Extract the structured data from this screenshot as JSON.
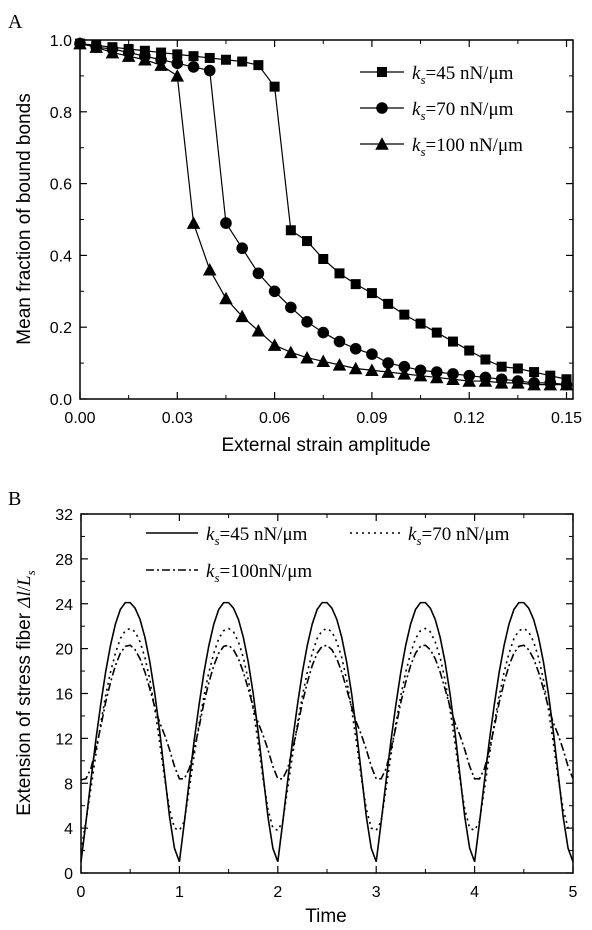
{
  "chart_data": [
    {
      "panel_label": "A",
      "type": "scatter",
      "xlabel": "External strain amplitude",
      "ylabel": "Mean fraction of bound bonds",
      "xlim": [
        0.0,
        0.152
      ],
      "ylim": [
        0.0,
        1.0
      ],
      "xticks": [
        0.0,
        0.03,
        0.06,
        0.09,
        0.12,
        0.15
      ],
      "xtick_labels": [
        "0.00",
        "0.03",
        "0.06",
        "0.09",
        "0.12",
        "0.15"
      ],
      "yticks": [
        0.0,
        0.2,
        0.4,
        0.6,
        0.8,
        1.0
      ],
      "ytick_labels": [
        "0.0",
        "0.2",
        "0.4",
        "0.6",
        "0.8",
        "1.0"
      ],
      "legend_position": "top-right",
      "series": [
        {
          "name_prefix": "k",
          "name_sub": "s",
          "name_rest": "=45 nN/μm",
          "marker": "square",
          "x": [
            0.0,
            0.005,
            0.01,
            0.015,
            0.02,
            0.025,
            0.03,
            0.035,
            0.04,
            0.045,
            0.05,
            0.055,
            0.06,
            0.065,
            0.07,
            0.075,
            0.08,
            0.085,
            0.09,
            0.095,
            0.1,
            0.105,
            0.11,
            0.115,
            0.12,
            0.125,
            0.13,
            0.135,
            0.14,
            0.145,
            0.15
          ],
          "y": [
            0.99,
            0.985,
            0.98,
            0.975,
            0.97,
            0.965,
            0.96,
            0.955,
            0.95,
            0.945,
            0.94,
            0.93,
            0.87,
            0.47,
            0.44,
            0.39,
            0.35,
            0.32,
            0.295,
            0.265,
            0.235,
            0.21,
            0.185,
            0.16,
            0.135,
            0.11,
            0.09,
            0.085,
            0.075,
            0.065,
            0.055
          ]
        },
        {
          "name_prefix": "k",
          "name_sub": "s",
          "name_rest": "=70 nN/μm",
          "marker": "circle",
          "x": [
            0.0,
            0.005,
            0.01,
            0.015,
            0.02,
            0.025,
            0.03,
            0.035,
            0.04,
            0.045,
            0.05,
            0.055,
            0.06,
            0.065,
            0.07,
            0.075,
            0.08,
            0.085,
            0.09,
            0.095,
            0.1,
            0.105,
            0.11,
            0.115,
            0.12,
            0.125,
            0.13,
            0.135,
            0.14,
            0.145,
            0.15
          ],
          "y": [
            0.99,
            0.98,
            0.975,
            0.965,
            0.955,
            0.945,
            0.935,
            0.925,
            0.915,
            0.49,
            0.42,
            0.35,
            0.3,
            0.255,
            0.215,
            0.185,
            0.16,
            0.14,
            0.125,
            0.1,
            0.09,
            0.08,
            0.075,
            0.07,
            0.065,
            0.06,
            0.055,
            0.05,
            0.045,
            0.045,
            0.04
          ]
        },
        {
          "name_prefix": "k",
          "name_sub": "s",
          "name_rest": "=100 nN/μm",
          "marker": "triangle",
          "x": [
            0.0,
            0.005,
            0.01,
            0.015,
            0.02,
            0.025,
            0.03,
            0.035,
            0.04,
            0.045,
            0.05,
            0.055,
            0.06,
            0.065,
            0.07,
            0.075,
            0.08,
            0.085,
            0.09,
            0.095,
            0.1,
            0.105,
            0.11,
            0.115,
            0.12,
            0.125,
            0.13,
            0.135,
            0.14,
            0.145,
            0.15
          ],
          "y": [
            0.99,
            0.98,
            0.965,
            0.955,
            0.945,
            0.93,
            0.9,
            0.49,
            0.36,
            0.28,
            0.23,
            0.19,
            0.15,
            0.13,
            0.115,
            0.105,
            0.095,
            0.085,
            0.08,
            0.075,
            0.07,
            0.065,
            0.06,
            0.055,
            0.05,
            0.05,
            0.045,
            0.045,
            0.04,
            0.04,
            0.04
          ]
        }
      ]
    },
    {
      "panel_label": "B",
      "type": "line",
      "xlabel": "Time",
      "ylabel_text": "Extension of stress fiber ",
      "ylabel_sym": "Δl",
      "ylabel_sep": "/",
      "ylabel_L": "L",
      "ylabel_sub": "s",
      "xlim": [
        0,
        5
      ],
      "ylim": [
        0,
        32
      ],
      "xticks": [
        0,
        1,
        2,
        3,
        4,
        5
      ],
      "xtick_labels": [
        "0",
        "1",
        "2",
        "3",
        "4",
        "5"
      ],
      "yticks": [
        0,
        4,
        8,
        12,
        16,
        20,
        24,
        28,
        32
      ],
      "ytick_labels": [
        "0",
        "4",
        "8",
        "12",
        "16",
        "20",
        "24",
        "28",
        "32"
      ],
      "legend_position": "top",
      "period": 1,
      "series": [
        {
          "name_prefix": "k",
          "name_sub": "s",
          "name_rest": "=45 nN/μm",
          "style": "solid",
          "x": [
            0,
            0.05,
            0.1,
            0.15,
            0.2,
            0.25,
            0.3,
            0.35,
            0.4,
            0.45,
            0.5,
            0.55,
            0.6,
            0.65,
            0.7,
            0.75,
            0.8,
            0.85,
            0.9,
            0.95,
            1.0
          ],
          "y": [
            1.0,
            4.5,
            8.2,
            11.8,
            15.0,
            17.9,
            20.3,
            22.2,
            23.5,
            24.1,
            24.1,
            23.6,
            22.6,
            21.0,
            18.8,
            16.0,
            12.6,
            8.8,
            5.0,
            2.2,
            1.0
          ]
        },
        {
          "name_prefix": "k",
          "name_sub": "s",
          "name_rest": "=70 nN/μm",
          "style": "dotted",
          "x": [
            0,
            0.05,
            0.1,
            0.15,
            0.2,
            0.25,
            0.3,
            0.35,
            0.4,
            0.45,
            0.5,
            0.55,
            0.6,
            0.65,
            0.7,
            0.75,
            0.8,
            0.85,
            0.9,
            0.95,
            1.0
          ],
          "y": [
            2.0,
            4.6,
            7.5,
            10.5,
            13.3,
            15.8,
            17.9,
            19.6,
            20.9,
            21.6,
            21.8,
            21.5,
            20.6,
            19.2,
            17.2,
            14.6,
            11.6,
            8.4,
            5.7,
            4.0,
            3.8
          ]
        },
        {
          "name_prefix": "k",
          "name_sub": "s",
          "name_rest": "=100nN/μm",
          "style": "dashdot",
          "x": [
            0,
            0.05,
            0.1,
            0.15,
            0.2,
            0.25,
            0.3,
            0.35,
            0.4,
            0.45,
            0.5,
            0.55,
            0.6,
            0.65,
            0.7,
            0.75,
            0.8,
            0.85,
            0.9,
            0.95,
            1.0
          ],
          "y": [
            8.3,
            8.4,
            9.3,
            11.0,
            13.0,
            15.2,
            17.0,
            18.5,
            19.6,
            20.2,
            20.3,
            19.9,
            19.1,
            17.9,
            16.4,
            14.8,
            13.4,
            12.3,
            11.0,
            9.5,
            8.4
          ]
        }
      ]
    }
  ]
}
